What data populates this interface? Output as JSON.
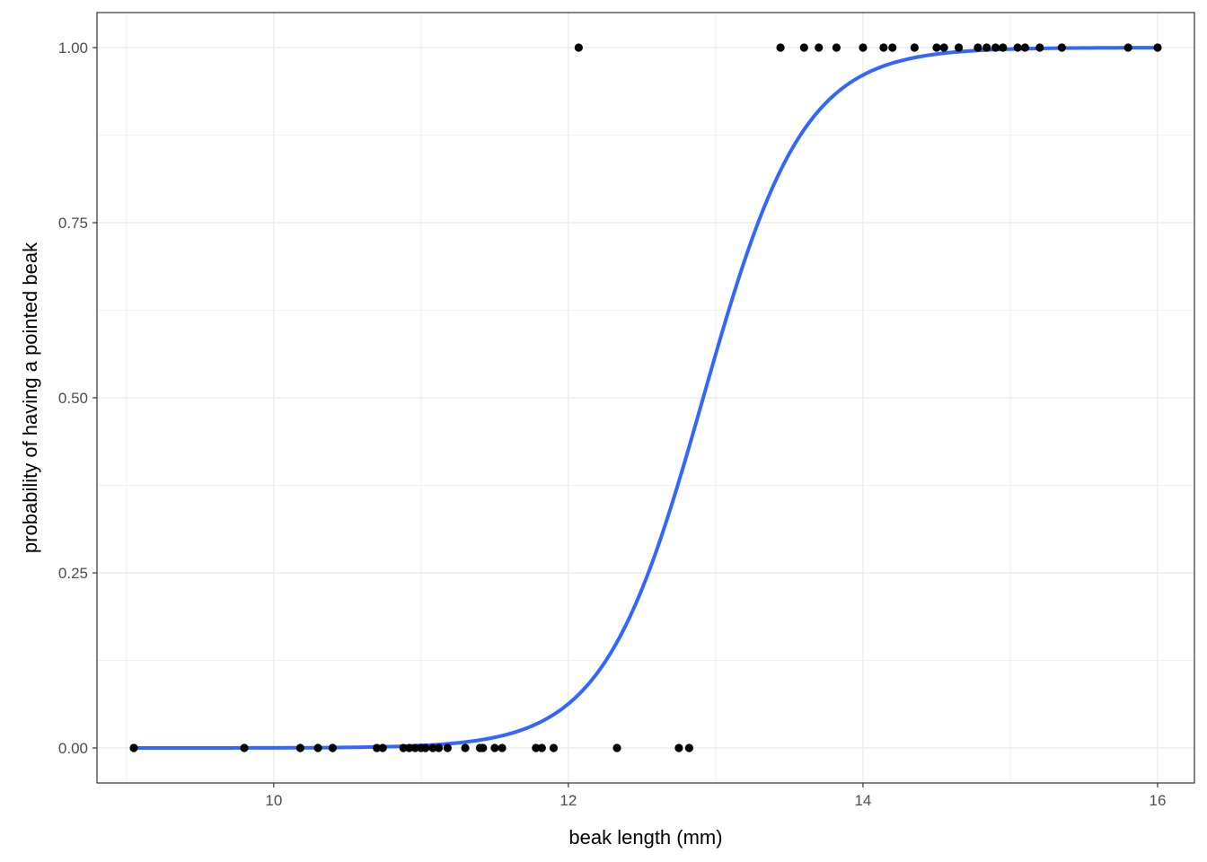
{
  "chart_data": {
    "type": "scatter",
    "title": "",
    "xlabel": "beak length (mm)",
    "ylabel": "probability of having a pointed beak",
    "xlim": [
      8.8,
      16.25
    ],
    "ylim": [
      -0.05,
      1.05
    ],
    "x_ticks": [
      10,
      12,
      14,
      16
    ],
    "x_tick_labels": [
      "10",
      "12",
      "14",
      "16"
    ],
    "y_ticks": [
      0,
      0.25,
      0.5,
      0.75,
      1
    ],
    "y_tick_labels": [
      "0.00",
      "0.25",
      "0.50",
      "0.75",
      "1.00"
    ],
    "grid": true,
    "legend": "none",
    "colors": {
      "points": "#000000",
      "fit_line": "#3366ff",
      "grid": "#ebebeb",
      "panel_border": "#333333"
    },
    "series": [
      {
        "kind": "points",
        "x": [
          9.05,
          9.8,
          10.18,
          10.3,
          10.4,
          10.7,
          10.74,
          10.88,
          10.92,
          10.96,
          11.0,
          11.03,
          11.08,
          11.12,
          11.18,
          11.3,
          11.4,
          11.42,
          11.5,
          11.55,
          11.78,
          11.82,
          11.9,
          12.07,
          12.33,
          12.75,
          12.82,
          13.44,
          13.6,
          13.7,
          13.82,
          14.0,
          14.14,
          14.2,
          14.35,
          14.5,
          14.55,
          14.65,
          14.78,
          14.84,
          14.9,
          14.95,
          15.05,
          15.1,
          15.2,
          15.35,
          15.8,
          16.0
        ],
        "y": [
          0,
          0,
          0,
          0,
          0,
          0,
          0,
          0,
          0,
          0,
          0,
          0,
          0,
          0,
          0,
          0,
          0,
          0,
          0,
          0,
          0,
          0,
          0,
          1,
          0,
          0,
          0,
          1,
          1,
          1,
          1,
          1,
          1,
          1,
          1,
          1,
          1,
          1,
          1,
          1,
          1,
          1,
          1,
          1,
          1,
          1,
          1,
          1
        ]
      },
      {
        "kind": "logistic_fit",
        "x_range": [
          9.05,
          16.0
        ],
        "intercept": -38.1,
        "slope": 2.95
      }
    ]
  }
}
